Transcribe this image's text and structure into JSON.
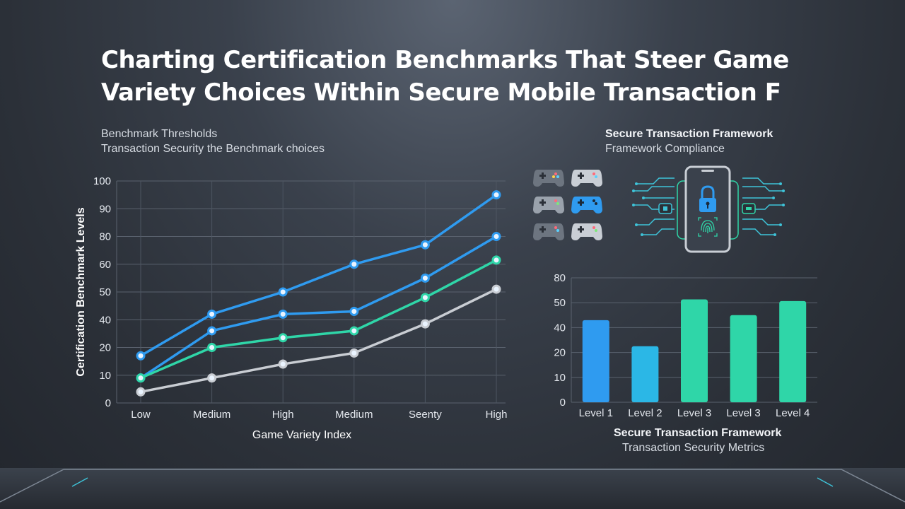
{
  "title": "Charting Certification Benchmarks That Steer Game Variety Choices Within Secure Mobile Transaction F",
  "left_panel": {
    "heading": "Benchmark Thresholds",
    "subheading": "Transaction Security the Benchmark choices"
  },
  "right_panel": {
    "heading": "Secure Transaction Framework",
    "subheading": "Framework Compliance",
    "footer_heading": "Secure Transaction Framework",
    "footer_subheading": "Transaction Security Metrics"
  },
  "icons": {
    "controllers": [
      "gamepad-icon",
      "gamepad-icon",
      "gamepad-icon",
      "gamepad-icon",
      "gamepad-icon",
      "gamepad-icon"
    ],
    "phone": "secure-phone-icon"
  },
  "colors": {
    "blue": "#2f9bf0",
    "cyan": "#2bb7e6",
    "teal": "#2fd6a8",
    "gray": "#c9cdd3"
  },
  "chart_data": [
    {
      "type": "line",
      "categories": [
        "Low",
        "Medium",
        "High",
        "Medium",
        "Seenty",
        "High"
      ],
      "xlabel": "Game Variety Index",
      "ylabel": "Certification Benchmark Levels",
      "yticks": [
        0,
        10,
        20,
        40,
        50,
        60,
        80,
        90,
        100
      ],
      "ylim": [
        0,
        100
      ],
      "grid": true,
      "series": [
        {
          "color": "#2f9bf0",
          "values": [
            17,
            42,
            50,
            60,
            74,
            95
          ]
        },
        {
          "color": "#2f9bf0",
          "values": [
            9,
            32,
            42,
            43,
            55,
            80
          ]
        },
        {
          "color": "#2fd6a8",
          "values": [
            9,
            20,
            27,
            32,
            48,
            63
          ]
        },
        {
          "color": "#c9cdd3",
          "values": [
            4,
            9,
            14,
            18,
            37,
            51
          ]
        }
      ]
    },
    {
      "type": "bar",
      "categories": [
        "Level 1",
        "Level 2",
        "Level 3",
        "Level 3",
        "Level 4"
      ],
      "values": [
        43,
        25,
        54,
        45,
        52
      ],
      "colors": [
        "#2f9bf0",
        "#2bb7e6",
        "#2fd6a8",
        "#2fd6a8",
        "#2fd6a8"
      ],
      "yticks": [
        0,
        10,
        20,
        40,
        50,
        80
      ],
      "ylim": [
        0,
        80
      ],
      "grid": true
    }
  ]
}
